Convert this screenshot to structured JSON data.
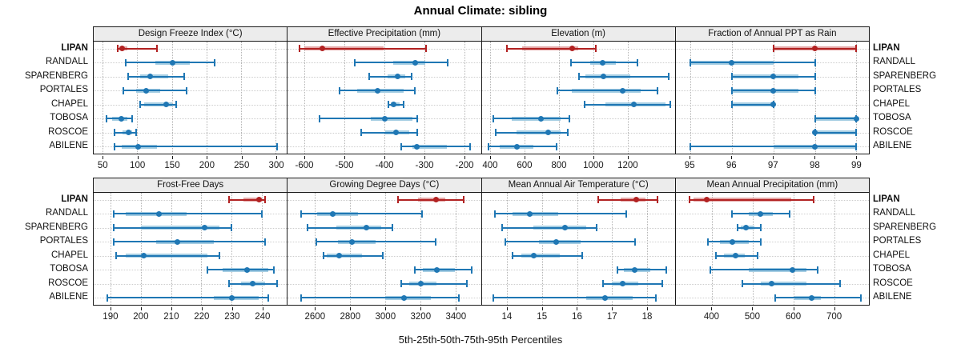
{
  "title": "Annual Climate: sibling",
  "caption": "5th-25th-50th-75th-95th Percentiles",
  "row_labels": [
    "LIPAN",
    "RANDALL",
    "SPARENBERG",
    "PORTALES",
    "CHAPEL",
    "TOBOSA",
    "ROSCOE",
    "ABILENE"
  ],
  "highlight_label": "LIPAN",
  "colors": {
    "series_blue": "#1f77b4",
    "series_blue_band": "#a6cee3",
    "highlight_red": "#b22222",
    "highlight_red_band": "#e4a6a6",
    "panel_header_bg": "#ececec",
    "border": "#1a1a1a",
    "grid": "#b4b4b4"
  },
  "chart_data": {
    "type": "dotplot",
    "percentiles": [
      "p5",
      "p25",
      "p50",
      "p75",
      "p95"
    ],
    "legend_note": "5th-25th-50th-75th-95th Percentiles",
    "highlight_series": "LIPAN",
    "panels": [
      {
        "slug": "design-freeze-index",
        "title": "Design Freeze Index (°C)",
        "xlim": [
          37,
          316
        ],
        "ticks": [
          50,
          100,
          150,
          200,
          250,
          300
        ],
        "rows": [
          {
            "name": "LIPAN",
            "p": [
              72,
              74,
              78,
              86,
              128
            ]
          },
          {
            "name": "RANDALL",
            "p": [
              83,
              126,
              151,
              176,
              212
            ]
          },
          {
            "name": "SPARENBERG",
            "p": [
              87,
              104,
              118,
              145,
              168
            ]
          },
          {
            "name": "PORTALES",
            "p": [
              80,
              98,
              113,
              133,
              171
            ]
          },
          {
            "name": "CHAPEL",
            "p": [
              104,
              110,
              142,
              150,
              156
            ]
          },
          {
            "name": "TOBOSA",
            "p": [
              56,
              64,
              77,
              86,
              93
            ]
          },
          {
            "name": "ROSCOE",
            "p": [
              67,
              79,
              87,
              93,
              98
            ]
          },
          {
            "name": "ABILENE",
            "p": [
              67,
              77,
              101,
              128,
              302
            ]
          }
        ]
      },
      {
        "slug": "effective-precipitation",
        "title": "Effective Precipitation (mm)",
        "xlim": [
          -642,
          -158
        ],
        "ticks": [
          -600,
          -500,
          -400,
          -300,
          -200
        ],
        "rows": [
          {
            "name": "LIPAN",
            "p": [
              -612,
              -600,
              -556,
              -402,
              -295
            ]
          },
          {
            "name": "RANDALL",
            "p": [
              -473,
              -377,
              -323,
              -297,
              -242
            ]
          },
          {
            "name": "SPARENBERG",
            "p": [
              -437,
              -392,
              -367,
              -347,
              -331
            ]
          },
          {
            "name": "PORTALES",
            "p": [
              -513,
              -468,
              -417,
              -352,
              -323
            ]
          },
          {
            "name": "CHAPEL",
            "p": [
              -390,
              -384,
              -377,
              -361,
              -352
            ]
          },
          {
            "name": "TOBOSA",
            "p": [
              -563,
              -433,
              -398,
              -330,
              -318
            ]
          },
          {
            "name": "ROSCOE",
            "p": [
              -457,
              -397,
              -370,
              -337,
              -317
            ]
          },
          {
            "name": "ABILENE",
            "p": [
              -357,
              -330,
              -319,
              -243,
              -185
            ]
          }
        ]
      },
      {
        "slug": "elevation",
        "title": "Elevation (m)",
        "xlim": [
          349,
          1475
        ],
        "ticks": [
          400,
          600,
          800,
          1000,
          1200
        ],
        "rows": [
          {
            "name": "LIPAN",
            "p": [
              495,
              585,
              875,
              910,
              1015
            ]
          },
          {
            "name": "RANDALL",
            "p": [
              870,
              980,
              1055,
              1130,
              1255
            ]
          },
          {
            "name": "SPARENBERG",
            "p": [
              915,
              955,
              1060,
              1215,
              1440
            ]
          },
          {
            "name": "PORTALES",
            "p": [
              790,
              875,
              1170,
              1275,
              1375
            ]
          },
          {
            "name": "CHAPEL",
            "p": [
              950,
              1070,
              1235,
              1420,
              1450
            ]
          },
          {
            "name": "TOBOSA",
            "p": [
              415,
              525,
              695,
              810,
              860
            ]
          },
          {
            "name": "ROSCOE",
            "p": [
              430,
              550,
              735,
              810,
              850
            ]
          },
          {
            "name": "ABILENE",
            "p": [
              390,
              455,
              555,
              650,
              785
            ]
          }
        ]
      },
      {
        "slug": "fraction-ppt-rain",
        "title": "Fraction of Annual PPT as Rain",
        "xlim": [
          94.65,
          99.3
        ],
        "ticks": [
          95,
          96,
          97,
          98,
          99
        ],
        "rows": [
          {
            "name": "LIPAN",
            "p": [
              97,
              97,
              98,
              99,
              99
            ]
          },
          {
            "name": "RANDALL",
            "p": [
              95,
              95,
              96,
              97,
              98
            ]
          },
          {
            "name": "SPARENBERG",
            "p": [
              96,
              96,
              97,
              97.6,
              98
            ]
          },
          {
            "name": "PORTALES",
            "p": [
              96,
              96,
              97,
              97.6,
              98
            ]
          },
          {
            "name": "CHAPEL",
            "p": [
              96,
              96,
              97,
              97,
              97
            ]
          },
          {
            "name": "TOBOSA",
            "p": [
              98,
              98,
              99,
              99,
              99
            ]
          },
          {
            "name": "ROSCOE",
            "p": [
              98,
              98,
              98,
              99,
              99
            ]
          },
          {
            "name": "ABILENE",
            "p": [
              95,
              97,
              98,
              99,
              99
            ]
          }
        ]
      },
      {
        "slug": "frost-free-days",
        "title": "Frost-Free Days",
        "xlim": [
          184.5,
          248.2
        ],
        "ticks": [
          190,
          200,
          210,
          220,
          230,
          240
        ],
        "rows": [
          {
            "name": "LIPAN",
            "p": [
              229,
              234,
              239,
              240,
              241
            ]
          },
          {
            "name": "RANDALL",
            "p": [
              191,
              195,
              206,
              215,
              240
            ]
          },
          {
            "name": "SPARENBERG",
            "p": [
              191,
              200,
              221,
              226,
              230
            ]
          },
          {
            "name": "PORTALES",
            "p": [
              191,
              205,
              212,
              224,
              241
            ]
          },
          {
            "name": "CHAPEL",
            "p": [
              192,
              195,
              201,
              222,
              226
            ]
          },
          {
            "name": "TOBOSA",
            "p": [
              222,
              227,
              235,
              242,
              244
            ]
          },
          {
            "name": "ROSCOE",
            "p": [
              229,
              233,
              237,
              241,
              245
            ]
          },
          {
            "name": "ABILENE",
            "p": [
              189,
              224,
              230,
              239,
              242
            ]
          }
        ]
      },
      {
        "slug": "growing-degree-days",
        "title": "Growing Degree Days (°C)",
        "xlim": [
          2444,
          3544
        ],
        "ticks": [
          2600,
          2800,
          3000,
          3200,
          3400
        ],
        "rows": [
          {
            "name": "LIPAN",
            "p": [
              3070,
              3185,
              3290,
              3340,
              3445
            ]
          },
          {
            "name": "RANDALL",
            "p": [
              2520,
              2610,
              2700,
              2845,
              3210
            ]
          },
          {
            "name": "SPARENBERG",
            "p": [
              2555,
              2720,
              2890,
              2975,
              3040
            ]
          },
          {
            "name": "PORTALES",
            "p": [
              2605,
              2730,
              2810,
              2945,
              3285
            ]
          },
          {
            "name": "CHAPEL",
            "p": [
              2650,
              2665,
              2735,
              2865,
              2985
            ]
          },
          {
            "name": "TOBOSA",
            "p": [
              3170,
              3215,
              3295,
              3395,
              3490
            ]
          },
          {
            "name": "ROSCOE",
            "p": [
              3090,
              3135,
              3200,
              3290,
              3465
            ]
          },
          {
            "name": "ABILENE",
            "p": [
              2520,
              3000,
              3105,
              3260,
              3420
            ]
          }
        ]
      },
      {
        "slug": "mean-annual-air-temperature",
        "title": "Mean Annual Air Temperature (°C)",
        "xlim": [
          13.27,
          18.8
        ],
        "ticks": [
          14,
          15,
          16,
          17,
          18
        ],
        "rows": [
          {
            "name": "LIPAN",
            "p": [
              16.6,
              17.25,
              17.7,
              17.95,
              18.3
            ]
          },
          {
            "name": "RANDALL",
            "p": [
              13.65,
              14.15,
              14.65,
              15.45,
              17.4
            ]
          },
          {
            "name": "SPARENBERG",
            "p": [
              13.85,
              14.75,
              15.65,
              16.25,
              16.55
            ]
          },
          {
            "name": "PORTALES",
            "p": [
              13.95,
              14.9,
              15.4,
              16.1,
              17.65
            ]
          },
          {
            "name": "CHAPEL",
            "p": [
              14.15,
              14.4,
              14.75,
              15.5,
              16.15
            ]
          },
          {
            "name": "TOBOSA",
            "p": [
              17.15,
              17.35,
              17.65,
              18.1,
              18.55
            ]
          },
          {
            "name": "ROSCOE",
            "p": [
              16.75,
              17.0,
              17.3,
              17.75,
              18.45
            ]
          },
          {
            "name": "ABILENE",
            "p": [
              13.6,
              16.25,
              16.8,
              17.6,
              18.25
            ]
          }
        ]
      },
      {
        "slug": "mean-annual-precipitation",
        "title": "Mean Annual Precipitation (mm)",
        "xlim": [
          311,
          785
        ],
        "ticks": [
          400,
          500,
          600,
          700
        ],
        "rows": [
          {
            "name": "LIPAN",
            "p": [
              345,
              355,
              387,
              595,
              650
            ]
          },
          {
            "name": "RANDALL",
            "p": [
              450,
              490,
              518,
              550,
              590
            ]
          },
          {
            "name": "SPARENBERG",
            "p": [
              462,
              470,
              483,
              505,
              520
            ]
          },
          {
            "name": "PORTALES",
            "p": [
              390,
              420,
              450,
              490,
              520
            ]
          },
          {
            "name": "CHAPEL",
            "p": [
              410,
              430,
              457,
              480,
              512
            ]
          },
          {
            "name": "TOBOSA",
            "p": [
              395,
              490,
              597,
              632,
              660
            ]
          },
          {
            "name": "ROSCOE",
            "p": [
              475,
              520,
              547,
              632,
              715
            ]
          },
          {
            "name": "ABILENE",
            "p": [
              555,
              602,
              645,
              667,
              765
            ]
          }
        ]
      }
    ]
  }
}
